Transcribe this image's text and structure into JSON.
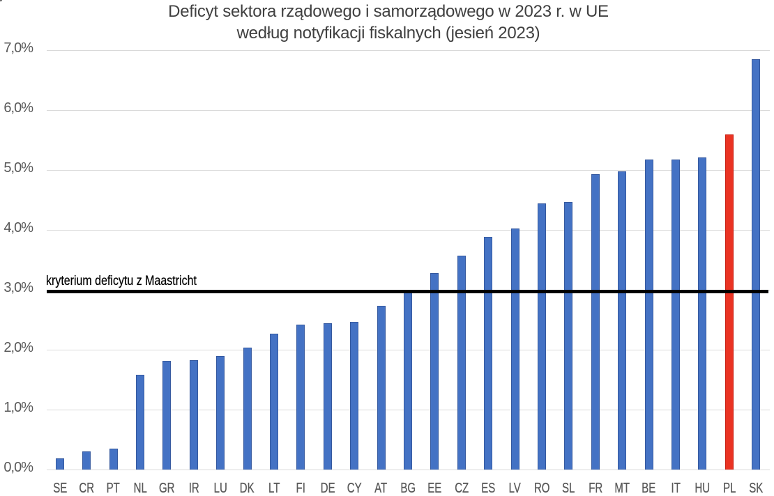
{
  "chart_data": {
    "type": "bar",
    "title_line1": "Deficyt sektora rządowego i samorządowego w 2023 r. w UE",
    "title_line2": "według notyfikacji fiskalnych (jesień 2023)",
    "categories": [
      "SE",
      "CR",
      "PT",
      "NL",
      "GR",
      "IR",
      "LU",
      "DK",
      "LT",
      "FI",
      "DE",
      "CY",
      "AT",
      "BG",
      "EE",
      "CZ",
      "ES",
      "LV",
      "RO",
      "SL",
      "FR",
      "MT",
      "BE",
      "IT",
      "HU",
      "PL",
      "SK"
    ],
    "values": [
      0.19,
      0.3,
      0.35,
      1.58,
      1.81,
      1.82,
      1.9,
      2.03,
      2.27,
      2.42,
      2.44,
      2.46,
      2.73,
      2.98,
      3.28,
      3.57,
      3.88,
      4.02,
      4.44,
      4.46,
      4.93,
      4.98,
      5.18,
      5.18,
      5.21,
      5.59,
      6.85
    ],
    "highlight_category": "PL",
    "y_ticks": [
      "0,0%",
      "1,0%",
      "2,0%",
      "3,0%",
      "4,0%",
      "5,0%",
      "6,0%",
      "7,0%"
    ],
    "ylim": [
      0,
      7
    ],
    "grid": true,
    "legend": "none",
    "xlabel": "",
    "ylabel": "",
    "reference_line": {
      "value": 3.0,
      "label": "kryterium deficytu z Maastricht",
      "color": "#000000"
    },
    "colors": {
      "bar_fill": "#4472c4",
      "bar_border": "#35599f",
      "highlight_fill": "#ea3323",
      "highlight_border": "#c81e12",
      "gridline": "#d9d9d9",
      "axis_line": "#d9d9d9",
      "tick_label": "#595959",
      "title": "#404040"
    }
  }
}
